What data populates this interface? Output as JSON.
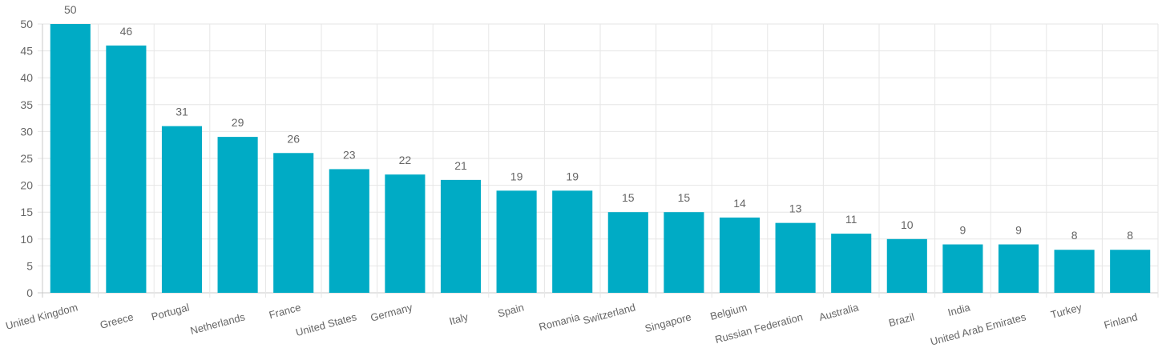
{
  "chart_data": {
    "type": "bar",
    "categories": [
      "United Kingdom",
      "Greece",
      "Portugal",
      "Netherlands",
      "France",
      "United States",
      "Germany",
      "Italy",
      "Spain",
      "Romania",
      "Switzerland",
      "Singapore",
      "Belgium",
      "Russian Federation",
      "Australia",
      "Brazil",
      "India",
      "United Arab Emirates",
      "Turkey",
      "Finland"
    ],
    "values": [
      50,
      46,
      31,
      29,
      26,
      23,
      22,
      21,
      19,
      19,
      15,
      15,
      14,
      13,
      11,
      10,
      9,
      9,
      8,
      8
    ],
    "yticks": [
      "0",
      "5",
      "10",
      "15",
      "20",
      "25",
      "30",
      "35",
      "40",
      "45",
      "50"
    ],
    "ylim": [
      0,
      50
    ],
    "grid": true,
    "data_labels": true,
    "bar_color": "#00abc5"
  }
}
